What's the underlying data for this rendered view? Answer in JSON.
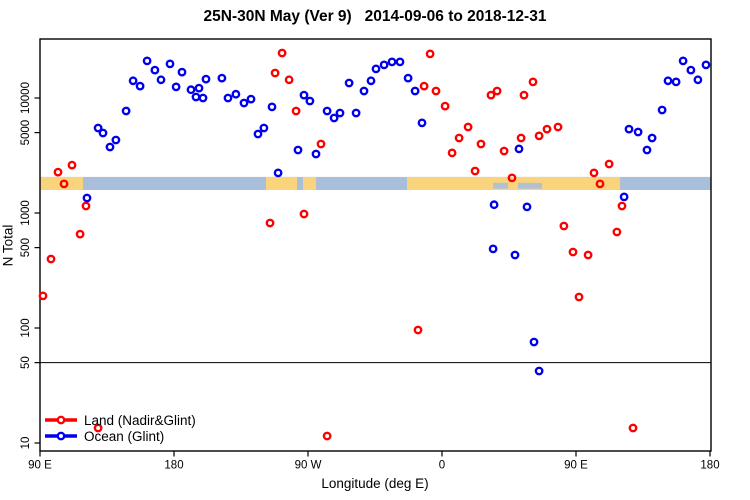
{
  "title": "25N-30N May (Ver 9)   2014-09-06 to 2018-12-31",
  "colors": {
    "land_series": "#FF0000",
    "ocean_series": "#0000EE",
    "band_land": "#FAD47C",
    "band_ocean": "#A9BEDB",
    "axis": "#000000",
    "background": "#FFFFFF"
  },
  "legend": {
    "items": [
      {
        "label": "Land (Nadir&Glint)",
        "color": "#FF0000"
      },
      {
        "label": "Ocean (Glint)",
        "color": "#0000EE"
      }
    ]
  },
  "chart_data": {
    "type": "scatter",
    "title": "25N-30N May (Ver 9)   2014-09-06 to 2018-12-31",
    "xlabel": "Longitude (deg E)",
    "ylabel": "N Total",
    "x_axis": {
      "note": "longitude axis runs 90E eastward wrapping: 90E,180,90W,0,90E,180 (unwrapped 90..540 deg)",
      "range": [
        90,
        540
      ],
      "ticks": [
        {
          "value": 90,
          "label": "90 E"
        },
        {
          "value": 180,
          "label": "180"
        },
        {
          "value": 270,
          "label": "90 W"
        },
        {
          "value": 360,
          "label": "0"
        },
        {
          "value": 450,
          "label": "90 E"
        },
        {
          "value": 540,
          "label": "180"
        }
      ]
    },
    "y_axis": {
      "scale": "log10",
      "range": [
        8.7,
        32600
      ],
      "ticks": [
        10,
        50,
        100,
        500,
        1000,
        5000,
        10000
      ]
    },
    "reference_line_y": 50,
    "grid": false,
    "legend_position": "bottom-left",
    "land_ocean_band": {
      "description": "coastline strip for 25N-30N drawn across plot at N ~1600-2060",
      "n_range": [
        1585,
        2060
      ],
      "ocean_color": "#A9BEDB",
      "land_color": "#FAD47C",
      "land_segments_deg": [
        [
          90,
          118.9
        ],
        [
          241.8,
          262.6
        ],
        [
          266.6,
          275.4
        ],
        [
          336.5,
          479.6
        ]
      ],
      "ocean_inlets_deg": [
        [
          394.3,
          404.3
        ],
        [
          411.0,
          427.2
        ]
      ]
    },
    "series": [
      {
        "name": "Land (Nadir&Glint)",
        "color": "#FF0000",
        "points": [
          [
            111.5,
            2610
          ],
          [
            102.1,
            2270
          ],
          [
            106.1,
            1790
          ],
          [
            252.6,
            24600
          ],
          [
            247.9,
            16500
          ],
          [
            257.3,
            14400
          ],
          [
            262.0,
            7710
          ],
          [
            278.7,
            3980
          ],
          [
            352.0,
            24200
          ],
          [
            348.0,
            12700
          ],
          [
            356.0,
            11500
          ],
          [
            362.1,
            8510
          ],
          [
            377.5,
            5600
          ],
          [
            371.5,
            4490
          ],
          [
            366.8,
            3330
          ],
          [
            386.2,
            3980
          ],
          [
            392.9,
            10600
          ],
          [
            397.0,
            11500
          ],
          [
            415.1,
            10600
          ],
          [
            421.1,
            13800
          ],
          [
            401.7,
            3460
          ],
          [
            413.1,
            4490
          ],
          [
            425.2,
            4680
          ],
          [
            430.5,
            5370
          ],
          [
            382.2,
            2320
          ],
          [
            407.0,
            2020
          ],
          [
            437.9,
            5600
          ],
          [
            462.1,
            2230
          ],
          [
            472.2,
            2670
          ],
          [
            120.9,
            1150
          ],
          [
            116.9,
            656
          ],
          [
            97.4,
            398
          ],
          [
            92.0,
            190
          ],
          [
            129.0,
            13.5
          ],
          [
            244.5,
            818
          ],
          [
            267.3,
            980
          ],
          [
            343.9,
            96
          ],
          [
            282.8,
            11.5
          ],
          [
            466.1,
            1790
          ],
          [
            480.9,
            1150
          ],
          [
            441.9,
            771
          ],
          [
            477.5,
            684
          ],
          [
            448.0,
            458
          ],
          [
            458.1,
            431
          ],
          [
            452.0,
            186
          ],
          [
            488.3,
            13.5
          ]
        ]
      },
      {
        "name": "Ocean (Glint)",
        "color": "#0000EE",
        "points": [
          [
            161.9,
            21000
          ],
          [
            167.2,
            17500
          ],
          [
            177.3,
            19800
          ],
          [
            185.4,
            16800
          ],
          [
            171.3,
            14400
          ],
          [
            181.4,
            12500
          ],
          [
            201.5,
            14600
          ],
          [
            191.4,
            11800
          ],
          [
            196.8,
            12200
          ],
          [
            194.8,
            10200
          ],
          [
            199.5,
            10000
          ],
          [
            152.5,
            14100
          ],
          [
            157.2,
            12700
          ],
          [
            147.8,
            7710
          ],
          [
            129.0,
            5480
          ],
          [
            132.3,
            4960
          ],
          [
            141.0,
            4310
          ],
          [
            137.0,
            3750
          ],
          [
            212.2,
            14900
          ],
          [
            216.3,
            10000
          ],
          [
            221.6,
            10800
          ],
          [
            227.0,
            9050
          ],
          [
            231.7,
            9790
          ],
          [
            245.8,
            8360
          ],
          [
            267.3,
            10600
          ],
          [
            271.3,
            9420
          ],
          [
            282.8,
            7710
          ],
          [
            287.5,
            6700
          ],
          [
            291.5,
            7410
          ],
          [
            302.3,
            7410
          ],
          [
            297.6,
            13500
          ],
          [
            307.6,
            11500
          ],
          [
            312.3,
            14100
          ],
          [
            315.7,
            17900
          ],
          [
            321.1,
            19400
          ],
          [
            326.4,
            20600
          ],
          [
            331.8,
            20600
          ],
          [
            236.4,
            4860
          ],
          [
            240.4,
            5480
          ],
          [
            263.3,
            3530
          ],
          [
            275.4,
            3260
          ],
          [
            249.9,
            2230
          ],
          [
            337.2,
            14900
          ],
          [
            341.9,
            11500
          ],
          [
            346.6,
            6070
          ],
          [
            411.7,
            3610
          ],
          [
            521.9,
            21000
          ],
          [
            527.2,
            17500
          ],
          [
            537.3,
            19400
          ],
          [
            531.9,
            14400
          ],
          [
            511.8,
            14100
          ],
          [
            517.2,
            13800
          ],
          [
            507.8,
            7870
          ],
          [
            485.6,
            5370
          ],
          [
            491.7,
            5060
          ],
          [
            501.1,
            4490
          ],
          [
            497.7,
            3530
          ],
          [
            121.6,
            1350
          ],
          [
            482.3,
            1380
          ],
          [
            395.0,
            1180
          ],
          [
            417.1,
            1130
          ],
          [
            394.3,
            487
          ],
          [
            409.0,
            431
          ],
          [
            421.8,
            75.5
          ],
          [
            425.2,
            42.3
          ]
        ]
      }
    ]
  }
}
